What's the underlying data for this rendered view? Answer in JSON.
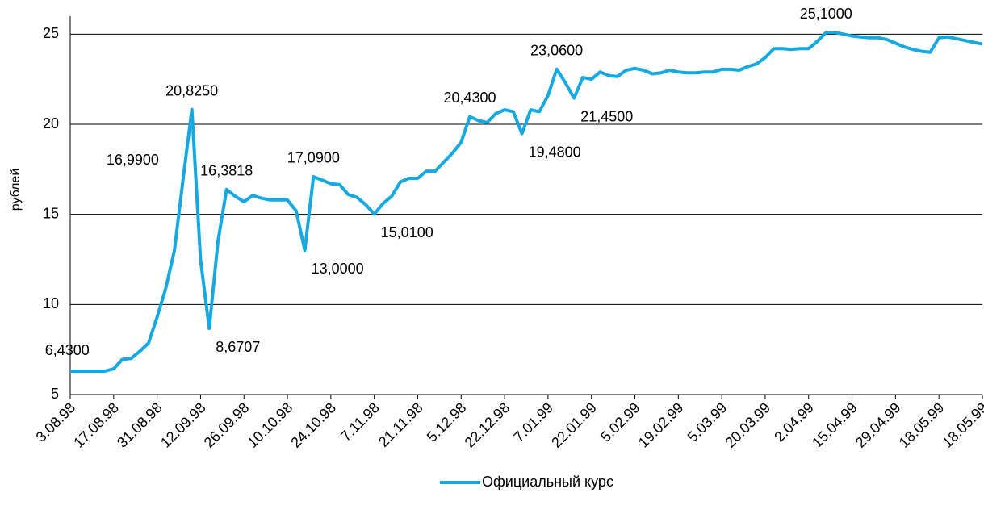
{
  "chart_data": {
    "type": "line",
    "ylabel": "рублей",
    "categories": [
      "3.08.98",
      null,
      null,
      null,
      null,
      "17.08.98",
      null,
      null,
      null,
      null,
      "31.08.98",
      null,
      null,
      null,
      null,
      "12.09.98",
      null,
      null,
      null,
      null,
      "26.09.98",
      null,
      null,
      null,
      null,
      "10.10.98",
      null,
      null,
      null,
      null,
      "24.10.98",
      null,
      null,
      null,
      null,
      "7.11.98",
      null,
      null,
      null,
      null,
      "21.11.98",
      null,
      null,
      null,
      null,
      "5.12.98",
      null,
      null,
      null,
      null,
      "22.12.98",
      null,
      null,
      null,
      null,
      "7.01.99",
      null,
      null,
      null,
      null,
      "22.01.99",
      null,
      null,
      null,
      null,
      "5.02.99",
      null,
      null,
      null,
      null,
      "19.02.99",
      null,
      null,
      null,
      null,
      "5.03.99",
      null,
      null,
      null,
      null,
      "20.03.99",
      null,
      null,
      null,
      null,
      "2.04.99",
      null,
      null,
      null,
      null,
      "15.04.99",
      null,
      null,
      null,
      null,
      "29.04.99",
      null,
      null,
      null,
      null,
      "18.05.99",
      null,
      null,
      null,
      null,
      "18.05.99"
    ],
    "series": [
      {
        "name": "Официальный курс",
        "color": "#16a9e1",
        "values": [
          6.3,
          6.3,
          6.3,
          6.3,
          6.3,
          6.43,
          6.95,
          7.0,
          7.4,
          7.85,
          9.3,
          10.9,
          13.0,
          16.99,
          20.825,
          12.5,
          8.6707,
          13.5,
          16.3818,
          16.0,
          15.7,
          16.05,
          15.9,
          15.8,
          15.8,
          15.8,
          15.2,
          13.0,
          17.09,
          16.9,
          16.7,
          16.65,
          16.1,
          15.95,
          15.55,
          15.01,
          15.6,
          16.0,
          16.8,
          17.0,
          17.0,
          17.4,
          17.4,
          17.9,
          18.4,
          19.0,
          20.43,
          20.2,
          20.1,
          20.6,
          20.8,
          20.7,
          19.48,
          20.8,
          20.7,
          21.6,
          23.06,
          22.3,
          21.45,
          22.6,
          22.5,
          22.9,
          22.7,
          22.65,
          23.0,
          23.1,
          23.0,
          22.8,
          22.85,
          23.0,
          22.9,
          22.85,
          22.85,
          22.9,
          22.9,
          23.05,
          23.05,
          23.0,
          23.2,
          23.35,
          23.7,
          24.2,
          24.2,
          24.15,
          24.2,
          24.2,
          24.6,
          25.1,
          25.1,
          25.0,
          24.9,
          24.85,
          24.8,
          24.8,
          24.7,
          24.5,
          24.3,
          24.15,
          24.05,
          24.0,
          24.8,
          24.85,
          24.75,
          24.65,
          24.55,
          24.45
        ],
        "value_labels": [
          null,
          null,
          null,
          null,
          null,
          "6,4300",
          null,
          null,
          null,
          null,
          null,
          null,
          null,
          "16,9900",
          "20,8250",
          null,
          "8,6707",
          null,
          "16,3818",
          null,
          null,
          null,
          null,
          null,
          null,
          null,
          null,
          "13,0000",
          "17,0900",
          null,
          null,
          null,
          null,
          null,
          null,
          "15,0100",
          null,
          null,
          null,
          null,
          null,
          null,
          null,
          null,
          null,
          null,
          "20,4300",
          null,
          null,
          null,
          null,
          null,
          "19,4800",
          null,
          null,
          null,
          "23,0600",
          null,
          "21,4500",
          null,
          null,
          null,
          null,
          null,
          null,
          null,
          null,
          null,
          null,
          null,
          null,
          null,
          null,
          null,
          null,
          null,
          null,
          null,
          null,
          null,
          null,
          null,
          null,
          null,
          null,
          null,
          null,
          "25,1000",
          null,
          null,
          null,
          null,
          null,
          null,
          null,
          null,
          null,
          null,
          null,
          null,
          null,
          null,
          null,
          null,
          null,
          null
        ]
      }
    ],
    "ylim": [
      5,
      26
    ],
    "yticks": [
      5,
      10,
      15,
      20,
      25
    ],
    "grid": true,
    "legend": "bottom"
  }
}
